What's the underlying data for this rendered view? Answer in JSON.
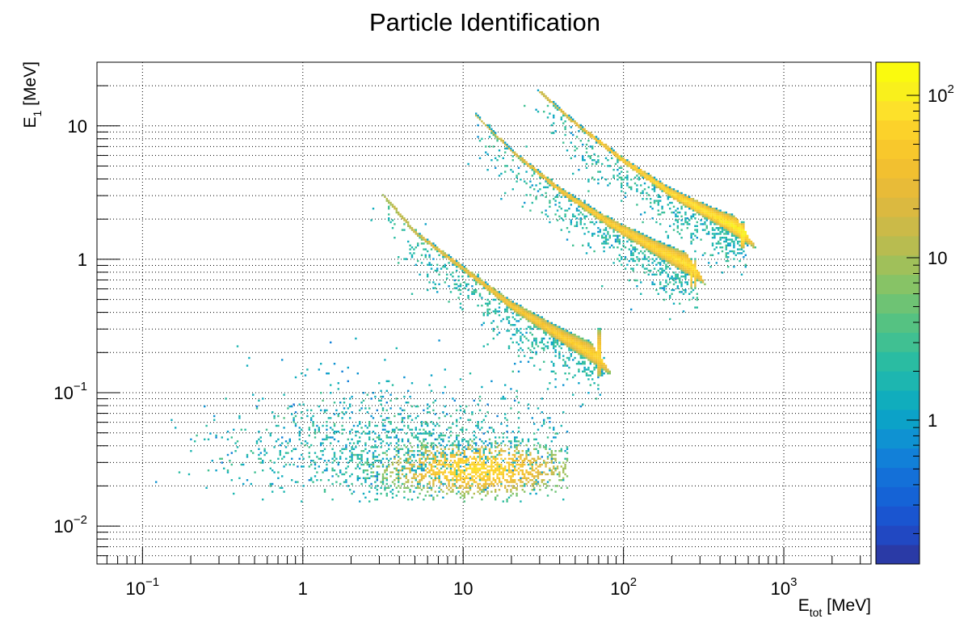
{
  "chart_data": {
    "type": "heatmap",
    "title": "Particle Identification",
    "xlabel": {
      "main": "E",
      "sub": "tot",
      "unit": " [MeV]"
    },
    "ylabel": {
      "main": "E",
      "sub": "1",
      "unit": " [MeV]"
    },
    "x_scale": "log",
    "y_scale": "log",
    "xlim": [
      0.052,
      3500
    ],
    "ylim": [
      0.0052,
      30
    ],
    "grid": true,
    "x_ticks": [
      {
        "value": 0.1,
        "base": "10",
        "exp": "−1"
      },
      {
        "value": 1,
        "base": "1",
        "exp": ""
      },
      {
        "value": 10,
        "base": "10",
        "exp": ""
      },
      {
        "value": 100,
        "base": "10",
        "exp": "2"
      },
      {
        "value": 1000,
        "base": "10",
        "exp": "3"
      }
    ],
    "y_ticks": [
      {
        "value": 0.01,
        "base": "10",
        "exp": "−2"
      },
      {
        "value": 0.1,
        "base": "10",
        "exp": "−1"
      },
      {
        "value": 1,
        "base": "1",
        "exp": ""
      },
      {
        "value": 10,
        "base": "10",
        "exp": ""
      }
    ],
    "colorbar": {
      "scale": "log",
      "range": [
        0.13,
        160
      ],
      "ticks": [
        {
          "value": 1,
          "base": "1",
          "exp": ""
        },
        {
          "value": 10,
          "base": "10",
          "exp": ""
        },
        {
          "value": 100,
          "base": "10",
          "exp": "2"
        }
      ],
      "palette": [
        "#2a3aa6",
        "#2148c2",
        "#1a55d0",
        "#1563d6",
        "#1470d8",
        "#1280d8",
        "#0f92d2",
        "#0ca2c8",
        "#10adbd",
        "#1db6b0",
        "#2abca2",
        "#40c092",
        "#55c282",
        "#6ec374",
        "#87c366",
        "#a0c05a",
        "#b8bc50",
        "#cbba48",
        "#dbb940",
        "#e8bb38",
        "#f2c030",
        "#f8c82c",
        "#fcd22a",
        "#fde12a",
        "#f9f01c",
        "#fafa0e"
      ]
    },
    "series": [
      {
        "name": "",
        "kind": "blob",
        "center": [
          12,
          0.027
        ],
        "peak": 70,
        "x_range": [
          0.12,
          45
        ],
        "y_range": [
          0.015,
          0.5
        ],
        "approx_counts_at_center": 70
      },
      {
        "name": "",
        "kind": "band",
        "points": [
          [
            3.2,
            3.0
          ],
          [
            5,
            1.6
          ],
          [
            10,
            0.85
          ],
          [
            20,
            0.45
          ],
          [
            40,
            0.27
          ],
          [
            72,
            0.18
          ]
        ],
        "width_end": [
          0.13,
          0.3
        ],
        "peak": 70
      },
      {
        "name": "",
        "kind": "band",
        "points": [
          [
            12,
            12.0
          ],
          [
            20,
            6.5
          ],
          [
            40,
            3.3
          ],
          [
            80,
            1.9
          ],
          [
            160,
            1.2
          ],
          [
            280,
            0.85
          ]
        ],
        "width_end": [
          0.6,
          1.0
        ],
        "peak": 90
      },
      {
        "name": "",
        "kind": "band",
        "points": [
          [
            30,
            18.0
          ],
          [
            50,
            10.5
          ],
          [
            100,
            5.5
          ],
          [
            200,
            3.1
          ],
          [
            400,
            2.0
          ],
          [
            570,
            1.6
          ]
        ],
        "width_end": [
          1.2,
          1.9
        ],
        "peak": 120
      }
    ]
  }
}
